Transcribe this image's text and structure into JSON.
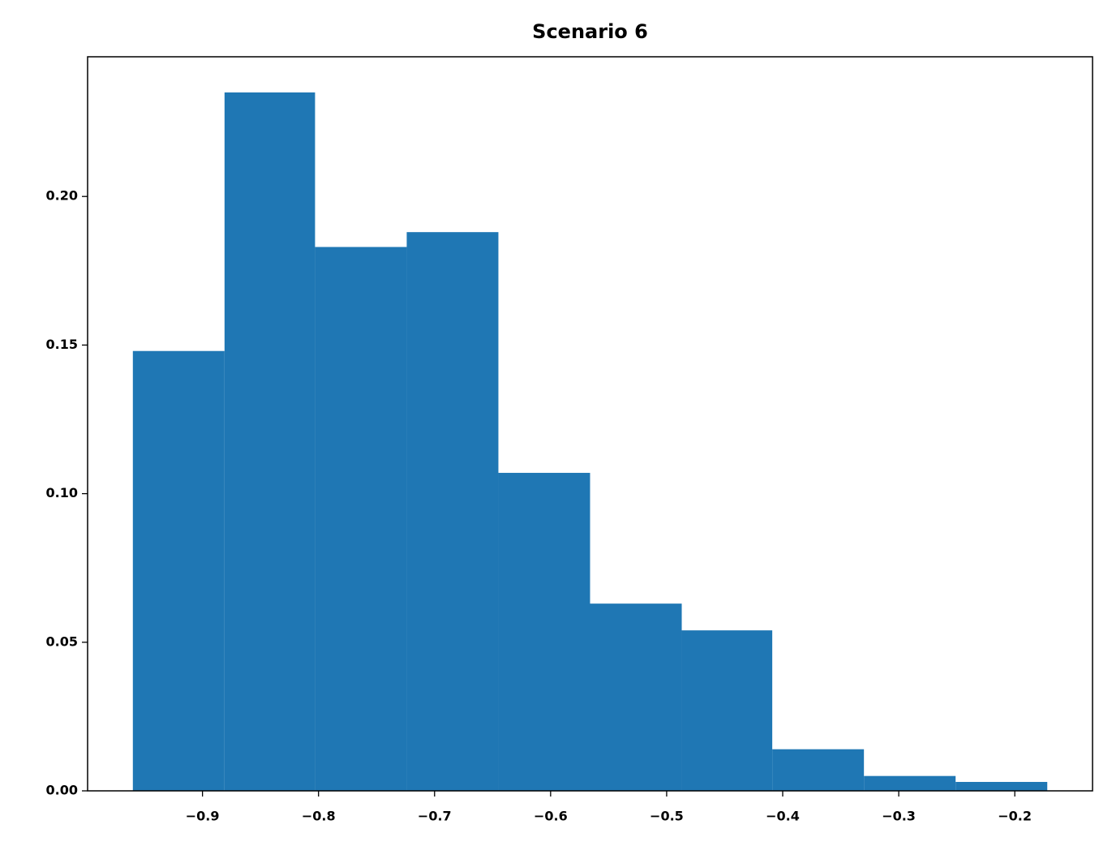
{
  "chart_data": {
    "type": "histogram",
    "title": "Scenario 6",
    "bins": [
      -0.96,
      -0.881,
      -0.803,
      -0.724,
      -0.645,
      -0.566,
      -0.487,
      -0.409,
      -0.33,
      -0.251,
      -0.172
    ],
    "values": [
      0.148,
      0.235,
      0.183,
      0.188,
      0.107,
      0.063,
      0.054,
      0.014,
      0.005,
      0.003
    ],
    "color": "#1f77b4",
    "xlim": [
      -0.999,
      -0.133
    ],
    "ylim": [
      0,
      0.247
    ],
    "xticks": [
      {
        "value": -0.9,
        "label": "−0.9"
      },
      {
        "value": -0.8,
        "label": "−0.8"
      },
      {
        "value": -0.7,
        "label": "−0.7"
      },
      {
        "value": -0.6,
        "label": "−0.6"
      },
      {
        "value": -0.5,
        "label": "−0.5"
      },
      {
        "value": -0.4,
        "label": "−0.4"
      },
      {
        "value": -0.3,
        "label": "−0.3"
      },
      {
        "value": -0.2,
        "label": "−0.2"
      }
    ],
    "yticks": [
      {
        "value": 0,
        "label": "0.00"
      },
      {
        "value": 0.05,
        "label": "0.05"
      },
      {
        "value": 0.1,
        "label": "0.10"
      },
      {
        "value": 0.15,
        "label": "0.15"
      },
      {
        "value": 0.2,
        "label": "0.20"
      }
    ],
    "grid": false
  }
}
